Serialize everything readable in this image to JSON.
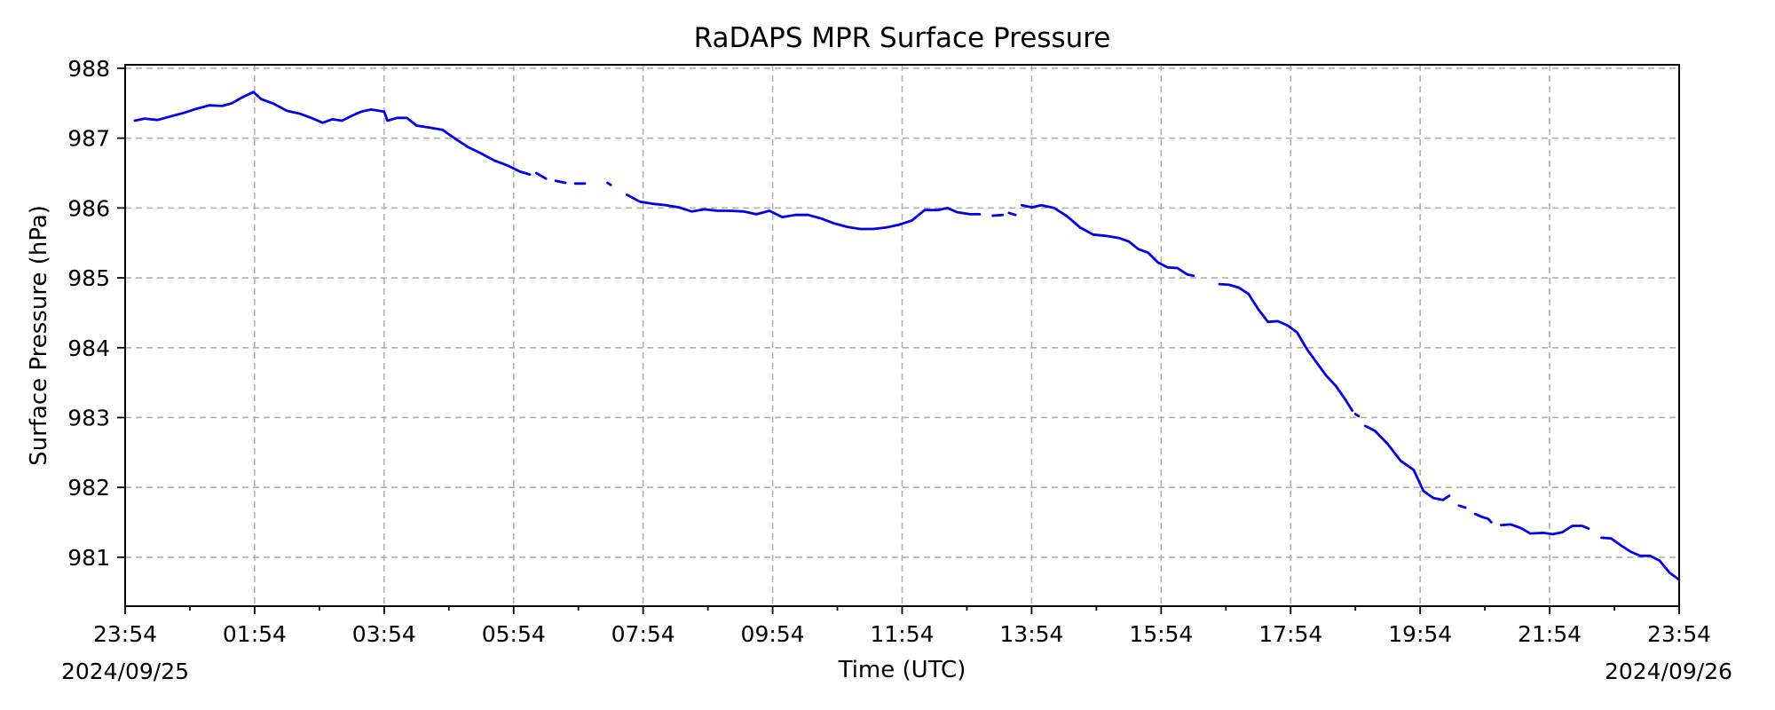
{
  "chart_data": {
    "type": "line",
    "title": "RaDAPS MPR Surface Pressure",
    "xlabel": "Time (UTC)",
    "ylabel": "Surface Pressure (hPa)",
    "xlim": [
      "2024-09-25 23:54",
      "2024-09-26 23:54"
    ],
    "ylim": [
      980.3,
      988.05
    ],
    "grid": true,
    "line_color": "#0000ee",
    "x_ticks": [
      "23:54",
      "01:54",
      "03:54",
      "05:54",
      "07:54",
      "09:54",
      "11:54",
      "13:54",
      "15:54",
      "17:54",
      "19:54",
      "21:54",
      "23:54"
    ],
    "x_tick_hours": [
      0,
      2,
      4,
      6,
      8,
      10,
      12,
      14,
      16,
      18,
      20,
      22,
      24
    ],
    "x_minor_tick_hours": [
      1,
      3,
      5,
      7,
      9,
      11,
      13,
      15,
      17,
      19,
      21,
      23
    ],
    "x_start_date_label": "2024/09/25",
    "x_end_date_label": "2024/09/26",
    "y_ticks": [
      981,
      982,
      983,
      984,
      985,
      986,
      987,
      988
    ],
    "series": [
      {
        "segments": [
          [
            [
              0.15,
              987.25
            ],
            [
              0.3,
              987.28
            ],
            [
              0.5,
              987.26
            ],
            [
              0.7,
              987.31
            ],
            [
              0.9,
              987.36
            ],
            [
              1.1,
              987.42
            ],
            [
              1.3,
              987.47
            ],
            [
              1.5,
              987.46
            ],
            [
              1.65,
              987.5
            ],
            [
              1.8,
              987.58
            ],
            [
              1.98,
              987.66
            ],
            [
              2.1,
              987.56
            ],
            [
              2.3,
              987.49
            ],
            [
              2.5,
              987.39
            ],
            [
              2.7,
              987.35
            ],
            [
              2.9,
              987.28
            ],
            [
              3.05,
              987.22
            ],
            [
              3.2,
              987.27
            ],
            [
              3.35,
              987.25
            ],
            [
              3.5,
              987.32
            ],
            [
              3.65,
              987.38
            ],
            [
              3.8,
              987.41
            ],
            [
              4.0,
              987.38
            ],
            [
              4.05,
              987.25
            ],
            [
              4.2,
              987.29
            ],
            [
              4.35,
              987.29
            ],
            [
              4.5,
              987.18
            ],
            [
              4.7,
              987.15
            ],
            [
              4.9,
              987.12
            ],
            [
              5.1,
              986.99
            ],
            [
              5.3,
              986.87
            ],
            [
              5.5,
              986.78
            ],
            [
              5.7,
              986.68
            ],
            [
              5.9,
              986.61
            ],
            [
              6.1,
              986.52
            ],
            [
              6.25,
              986.48
            ]
          ],
          [
            [
              6.35,
              986.5
            ],
            [
              6.5,
              986.42
            ]
          ],
          [
            [
              6.65,
              986.39
            ],
            [
              6.8,
              986.36
            ]
          ],
          [
            [
              6.95,
              986.35
            ],
            [
              7.1,
              986.35
            ]
          ],
          [
            [
              7.45,
              986.36
            ],
            [
              7.5,
              986.33
            ]
          ],
          [
            [
              7.75,
              986.19
            ],
            [
              7.95,
              986.09
            ],
            [
              8.15,
              986.06
            ],
            [
              8.35,
              986.04
            ],
            [
              8.55,
              986.01
            ],
            [
              8.75,
              985.95
            ],
            [
              8.95,
              985.98
            ],
            [
              9.15,
              985.96
            ],
            [
              9.35,
              985.96
            ],
            [
              9.55,
              985.95
            ],
            [
              9.75,
              985.91
            ],
            [
              9.95,
              985.96
            ],
            [
              10.15,
              985.87
            ],
            [
              10.35,
              985.9
            ],
            [
              10.55,
              985.9
            ],
            [
              10.75,
              985.85
            ],
            [
              10.95,
              985.78
            ],
            [
              11.15,
              985.73
            ],
            [
              11.35,
              985.7
            ],
            [
              11.55,
              985.7
            ],
            [
              11.75,
              985.72
            ],
            [
              11.95,
              985.76
            ],
            [
              12.15,
              985.82
            ],
            [
              12.35,
              985.97
            ],
            [
              12.55,
              985.97
            ],
            [
              12.7,
              986.0
            ],
            [
              12.85,
              985.94
            ],
            [
              13.05,
              985.91
            ],
            [
              13.2,
              985.91
            ]
          ],
          [
            [
              13.4,
              985.89
            ],
            [
              13.55,
              985.9
            ]
          ],
          [
            [
              13.65,
              985.93
            ],
            [
              13.75,
              985.9
            ]
          ],
          [
            [
              13.85,
              986.04
            ],
            [
              14.0,
              986.01
            ],
            [
              14.15,
              986.04
            ],
            [
              14.35,
              986.0
            ],
            [
              14.55,
              985.88
            ],
            [
              14.75,
              985.72
            ],
            [
              14.95,
              985.62
            ],
            [
              15.15,
              985.6
            ],
            [
              15.35,
              985.57
            ],
            [
              15.5,
              985.52
            ],
            [
              15.65,
              985.41
            ],
            [
              15.8,
              985.36
            ],
            [
              15.95,
              985.22
            ],
            [
              16.1,
              985.15
            ],
            [
              16.25,
              985.14
            ],
            [
              16.4,
              985.05
            ],
            [
              16.5,
              985.03
            ]
          ],
          [
            [
              16.9,
              984.91
            ],
            [
              17.05,
              984.9
            ],
            [
              17.2,
              984.86
            ],
            [
              17.35,
              984.77
            ],
            [
              17.5,
              984.55
            ],
            [
              17.65,
              984.37
            ],
            [
              17.8,
              984.38
            ],
            [
              17.95,
              984.32
            ],
            [
              18.1,
              984.22
            ],
            [
              18.25,
              983.98
            ],
            [
              18.4,
              983.79
            ],
            [
              18.55,
              983.6
            ],
            [
              18.7,
              983.45
            ],
            [
              18.85,
              983.25
            ],
            [
              18.95,
              983.1
            ]
          ],
          [
            [
              19.0,
              983.05
            ],
            [
              19.05,
              983.02
            ]
          ],
          [
            [
              19.15,
              982.88
            ],
            [
              19.3,
              982.81
            ],
            [
              19.5,
              982.62
            ],
            [
              19.7,
              982.38
            ],
            [
              19.9,
              982.25
            ],
            [
              20.05,
              981.95
            ],
            [
              20.2,
              981.85
            ],
            [
              20.35,
              981.82
            ],
            [
              20.45,
              981.88
            ]
          ],
          [
            [
              20.6,
              981.74
            ],
            [
              20.7,
              981.71
            ]
          ],
          [
            [
              20.85,
              981.62
            ],
            [
              20.95,
              981.58
            ],
            [
              21.05,
              981.55
            ],
            [
              21.1,
              981.5
            ]
          ],
          [
            [
              21.25,
              981.46
            ],
            [
              21.4,
              981.47
            ],
            [
              21.55,
              981.42
            ],
            [
              21.7,
              981.34
            ],
            [
              21.9,
              981.35
            ],
            [
              22.05,
              981.33
            ],
            [
              22.2,
              981.36
            ],
            [
              22.35,
              981.45
            ],
            [
              22.5,
              981.45
            ],
            [
              22.6,
              981.41
            ]
          ],
          [
            [
              22.8,
              981.28
            ],
            [
              22.95,
              981.27
            ],
            [
              23.1,
              981.17
            ],
            [
              23.25,
              981.08
            ],
            [
              23.4,
              981.02
            ],
            [
              23.55,
              981.02
            ],
            [
              23.7,
              980.95
            ],
            [
              23.85,
              980.78
            ],
            [
              24.0,
              980.68
            ]
          ]
        ]
      }
    ]
  }
}
